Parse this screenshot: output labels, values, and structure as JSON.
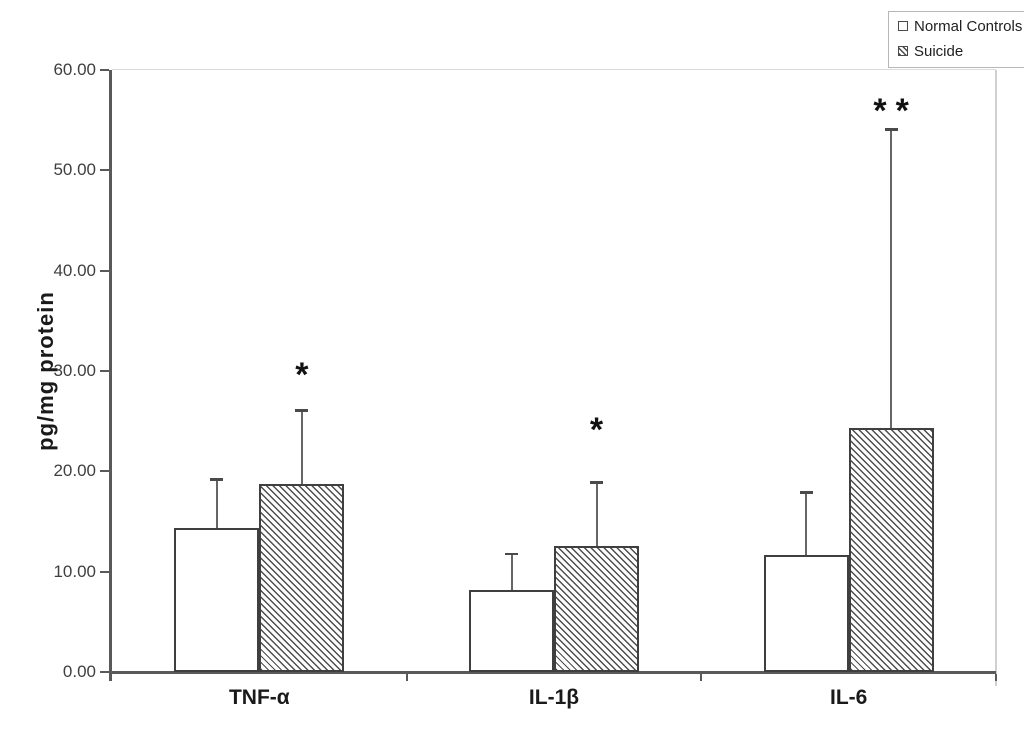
{
  "chart_data": {
    "type": "bar",
    "title": "",
    "ylabel": "pg/mg protein",
    "xlabel": "",
    "categories": [
      "TNF-α",
      "IL-1β",
      "IL-6"
    ],
    "series": [
      {
        "name": "Normal Controls",
        "fill": "open",
        "values": [
          14.4,
          8.2,
          11.7
        ],
        "errors_plus_sd": [
          4.8,
          3.6,
          6.2
        ]
      },
      {
        "name": "Suicide",
        "fill": "hatched",
        "values": [
          18.7,
          12.6,
          24.3
        ],
        "errors_plus_sd": [
          7.4,
          6.3,
          29.8
        ]
      }
    ],
    "error_bar_tops": {
      "Normal Controls": [
        19.2,
        11.8,
        17.9
      ],
      "Suicide": [
        26.1,
        18.9,
        54.1
      ]
    },
    "significance_on_suicide_bars": [
      "*",
      "*",
      "**"
    ],
    "ylim": [
      0,
      60
    ],
    "ytick_step": 10,
    "ytick_labels": [
      "0.00",
      "10.00",
      "20.00",
      "30.00",
      "40.00",
      "50.00",
      "60.00"
    ],
    "grid": false,
    "legend_position": "top-right",
    "legend_markers": [
      "open-square",
      "hatched-square"
    ]
  },
  "colors": {
    "axis": "#595959",
    "bar_border": "#3f3f3f",
    "hatch": "#4d4d4d",
    "tick_label": "#3f3f3f",
    "category_label": "#1a1a1a",
    "legend_border": "#b7b7b7",
    "background": "#ffffff"
  }
}
